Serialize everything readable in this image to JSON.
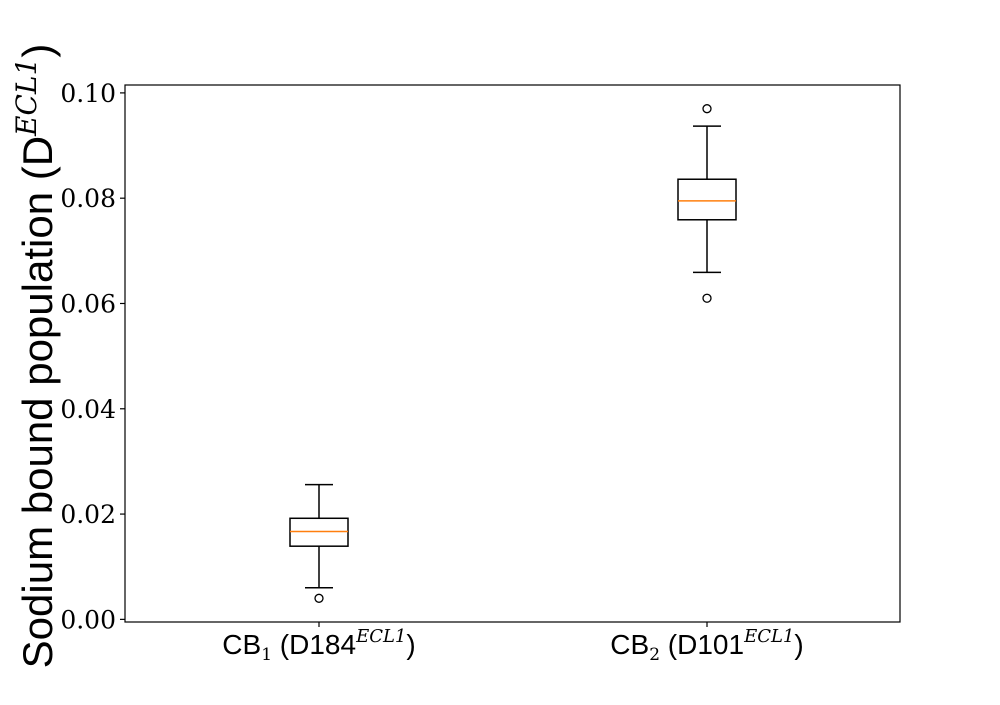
{
  "chart_data": {
    "type": "box",
    "ylabel": {
      "main": "Sodium bound population (D",
      "superscript": "ECL1",
      "close": ")"
    },
    "ylim": [
      -0.0005,
      0.1015
    ],
    "yticks": [
      0.0,
      0.02,
      0.04,
      0.06,
      0.08,
      0.1
    ],
    "ytick_labels": [
      "0.00",
      "0.02",
      "0.04",
      "0.06",
      "0.08",
      "0.10"
    ],
    "grid": false,
    "legend": "none",
    "median_color": "#ff7f0e",
    "line_color": "#000000",
    "categories": [
      {
        "prefix": "CB",
        "subscript": "1",
        "residue": " (D184",
        "superscript": "ECL1",
        "suffix": ")"
      },
      {
        "prefix": "CB",
        "subscript": "2",
        "residue": " (D101",
        "superscript": "ECL1",
        "suffix": ")"
      }
    ],
    "boxes": [
      {
        "whislo": 0.006,
        "q1": 0.0139,
        "med": 0.0167,
        "q3": 0.0192,
        "whishi": 0.0256,
        "fliers": [
          0.004
        ]
      },
      {
        "whislo": 0.0659,
        "q1": 0.0759,
        "med": 0.0795,
        "q3": 0.0836,
        "whishi": 0.0937,
        "fliers": [
          0.061,
          0.097
        ]
      }
    ]
  }
}
